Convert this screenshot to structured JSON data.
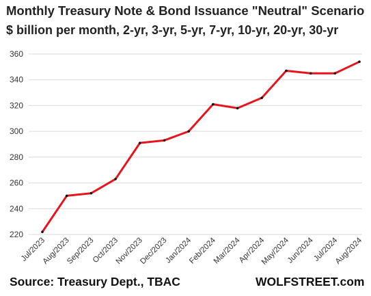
{
  "header": {
    "title": "Monthly Treasury Note & Bond Issuance \"Neutral\" Scenario",
    "subtitle": "$ billion per month, 2-yr, 3-yr, 5-yr, 7-yr, 10-yr, 20-yr, 30-yr"
  },
  "footer": {
    "source": "Source: Treasury Dept., TBAC",
    "brand": "WOLFSTREET.com"
  },
  "chart_data": {
    "type": "line",
    "title": "Monthly Treasury Note & Bond Issuance \"Neutral\" Scenario",
    "subtitle": "$ billion per month, 2-yr, 3-yr, 5-yr, 7-yr, 10-yr, 20-yr, 30-yr",
    "xlabel": "",
    "ylabel": "",
    "categories": [
      "Jul/2023",
      "Aug/2023",
      "Sep/2023",
      "Oct/2023",
      "Nov/2023",
      "Dec/2023",
      "Jan/2024",
      "Feb/2024",
      "Mar/2024",
      "Apr/2024",
      "May/2024",
      "Jun/2024",
      "Jul/2024",
      "Aug/2024"
    ],
    "series": [
      {
        "values": [
          222,
          250,
          252,
          263,
          291,
          293,
          300,
          321,
          318,
          326,
          347,
          345,
          345,
          354
        ]
      }
    ],
    "ylim": [
      220,
      360
    ],
    "yticks": [
      220,
      240,
      260,
      280,
      300,
      320,
      340,
      360
    ],
    "grid": true,
    "line_color": "#e8141b",
    "marker_color": "#111111",
    "grid_color": "#d9d9d9"
  }
}
